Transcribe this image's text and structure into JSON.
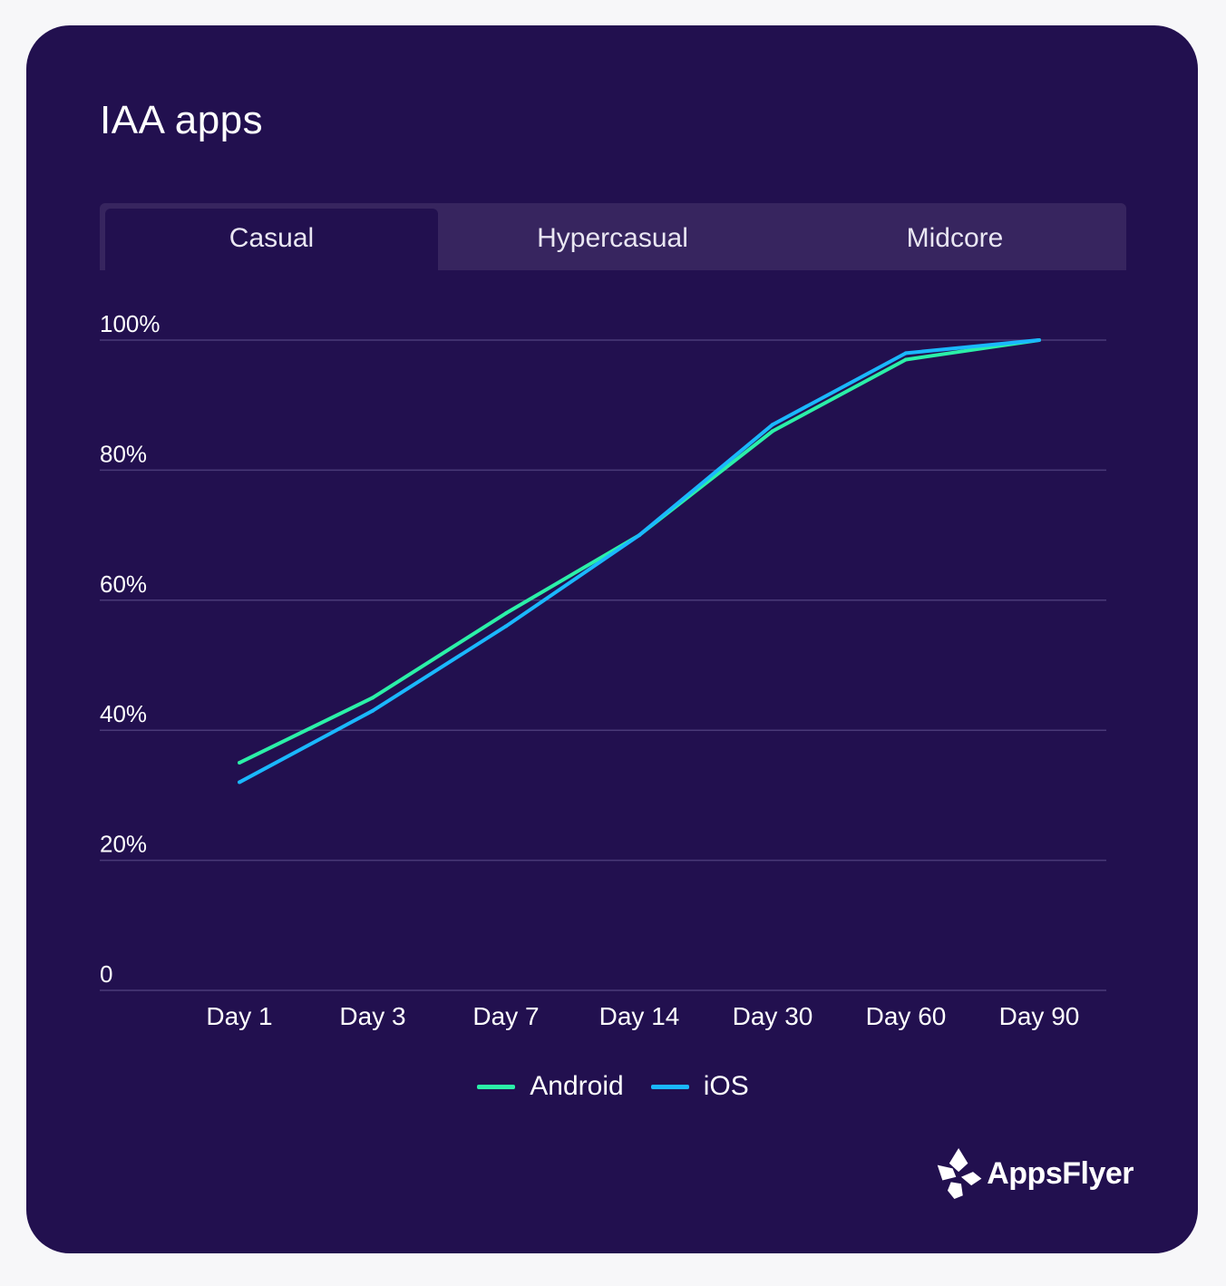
{
  "title": "IAA apps",
  "tabs": [
    {
      "label": "Casual",
      "active": true
    },
    {
      "label": "Hypercasual",
      "active": false
    },
    {
      "label": "Midcore",
      "active": false
    }
  ],
  "colors": {
    "background": "#22104f",
    "android": "#2bf0a8",
    "ios": "#1ab8ff",
    "grid": "#4a3a78"
  },
  "chart_data": {
    "type": "line",
    "categories": [
      "Day 1",
      "Day 3",
      "Day 7",
      "Day 14",
      "Day 30",
      "Day 60",
      "Day 90"
    ],
    "series": [
      {
        "name": "Android",
        "values": [
          35,
          45,
          58,
          70,
          86,
          97,
          100
        ]
      },
      {
        "name": "iOS",
        "values": [
          32,
          43,
          56,
          70,
          87,
          98,
          100
        ]
      }
    ],
    "y_ticks": [
      "0",
      "20%",
      "40%",
      "60%",
      "80%",
      "100%"
    ],
    "y_tick_values": [
      0,
      20,
      40,
      60,
      80,
      100
    ],
    "ylim": [
      0,
      100
    ],
    "title": "IAA apps",
    "xlabel": "",
    "ylabel": "",
    "grid": true,
    "legend": "bottom-center"
  },
  "legend": [
    {
      "label": "Android",
      "color": "#2bf0a8"
    },
    {
      "label": "iOS",
      "color": "#1ab8ff"
    }
  ],
  "logo": {
    "text": "AppsFlyer"
  }
}
